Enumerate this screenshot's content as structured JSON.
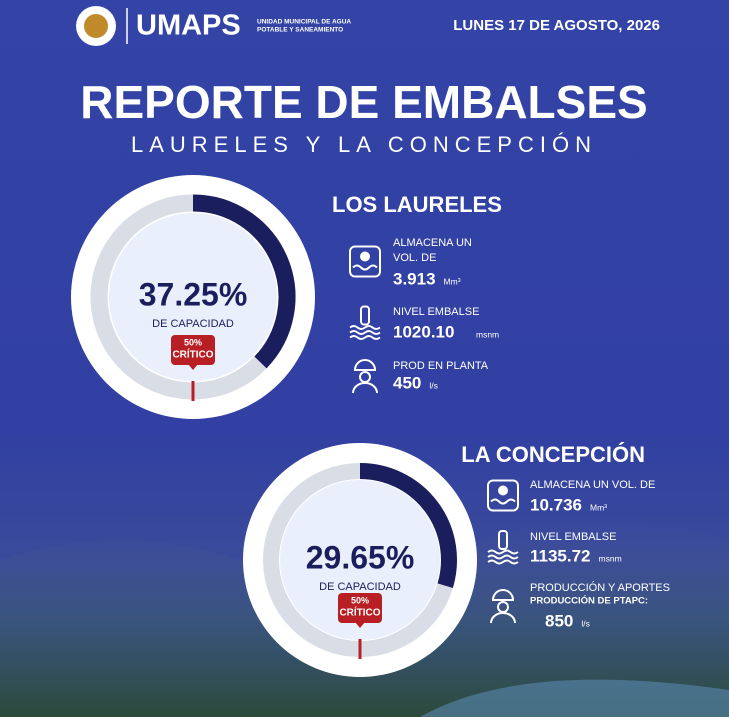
{
  "header": {
    "brand": "UMAPS",
    "brand_sub": [
      "UNIDAD MUNICIPAL DE AGUA",
      "POTABLE Y SANEAMIENTO"
    ],
    "date": "LUNES 17 DE AGOSTO, 2026"
  },
  "title": "REPORTE DE EMBALSES",
  "subtitle": "LAURELES Y LA CONCEPCIÓN",
  "reservoirs": [
    {
      "name": "LOS LAURELES",
      "percent": 37.25,
      "percent_label": "37.25%",
      "caption": "DE CAPACIDAD",
      "critical": {
        "value": 50,
        "label": "50%",
        "text": "CRÍTICO"
      },
      "items": [
        {
          "lines": [
            "ALMACENA UN",
            "VOL. DE"
          ],
          "value": "3.913",
          "unit": "Mm³"
        },
        {
          "lines": [
            "NIVEL EMBALSE"
          ],
          "value": "1020.10",
          "unit": "msnm"
        },
        {
          "lines": [
            "PROD EN PLANTA"
          ],
          "value": "450",
          "unit": "l/s"
        }
      ]
    },
    {
      "name": "LA CONCEPCIÓN",
      "percent": 29.65,
      "percent_label": "29.65%",
      "caption": "DE CAPACIDAD",
      "critical": {
        "value": 50,
        "label": "50%",
        "text": "CRÍTICO"
      },
      "items": [
        {
          "lines": [
            "ALMACENA UN VOL. DE"
          ],
          "value": "10.736",
          "unit": "Mm³"
        },
        {
          "lines": [
            "NIVEL EMBALSE"
          ],
          "value": "1135.72",
          "unit": "msnm"
        },
        {
          "lines": [
            "PRODUCCIÓN Y APORTES",
            "PRODUCCIÓN DE PTAPC:"
          ],
          "value": "850",
          "unit": "l/s"
        }
      ]
    }
  ]
}
